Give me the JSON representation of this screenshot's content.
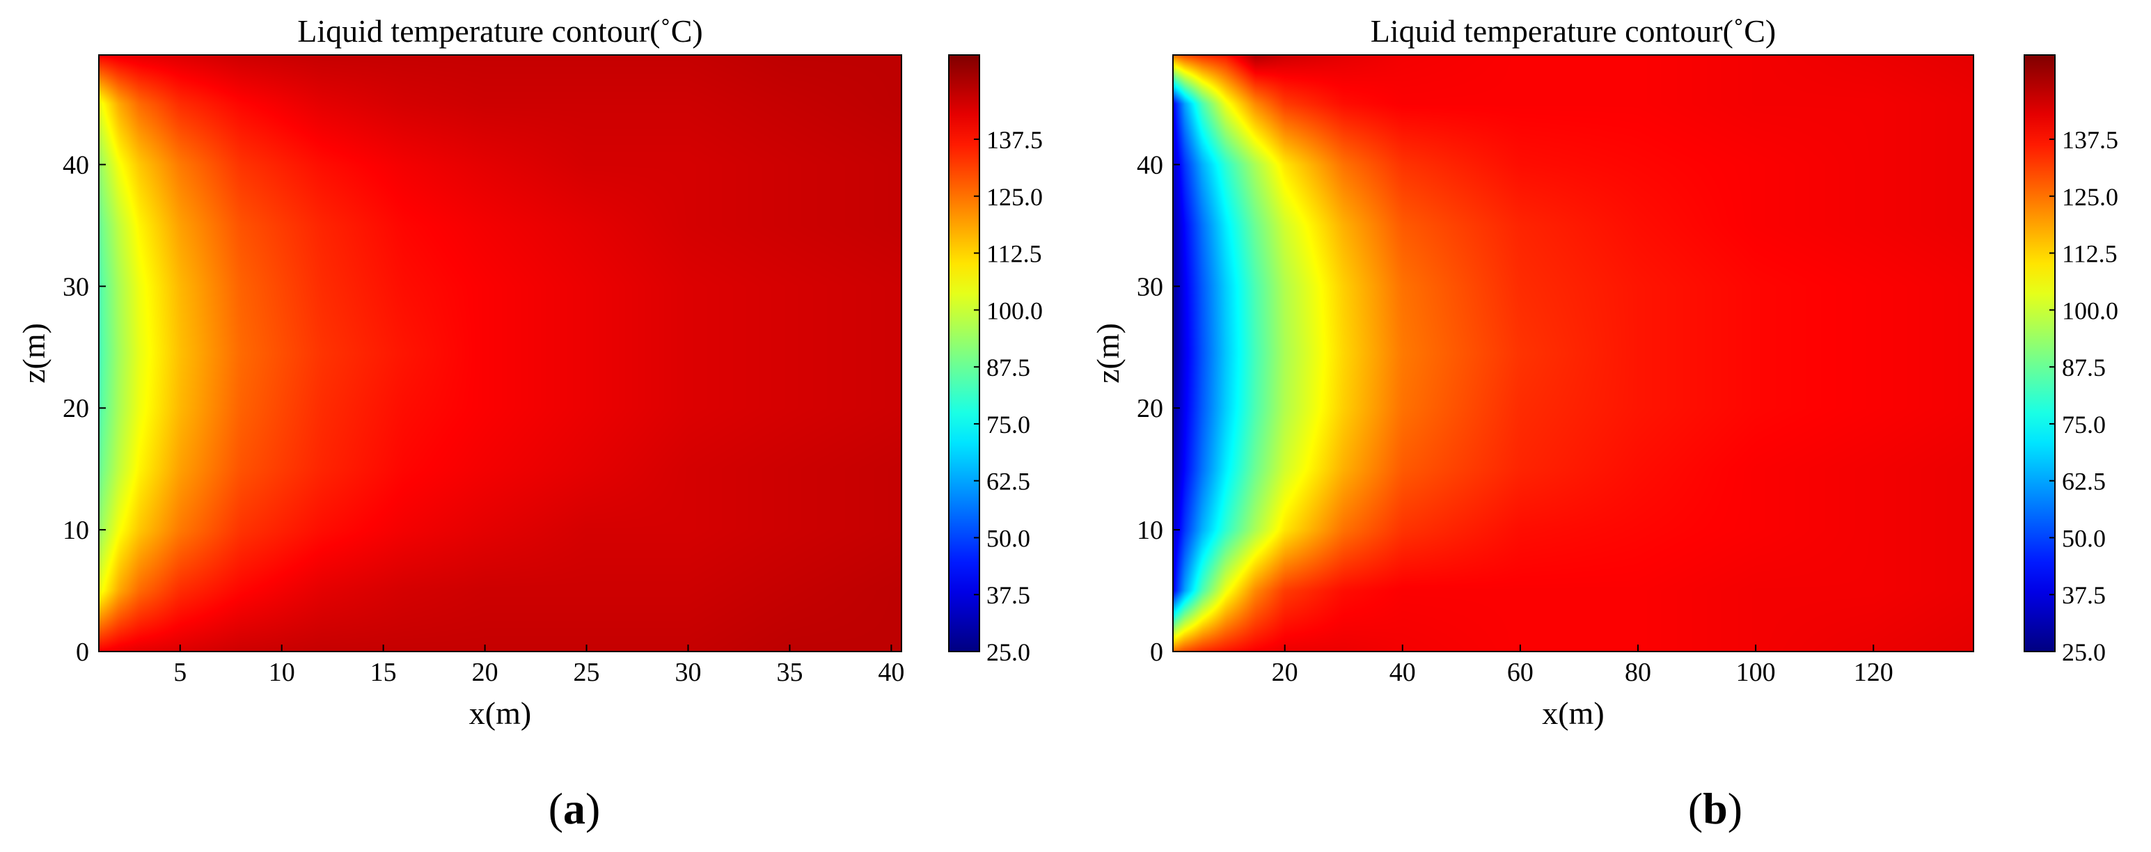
{
  "panel_labels": {
    "a_open": "(",
    "a_letter": "a",
    "a_close": ")",
    "b_open": "(",
    "b_letter": "b",
    "b_close": ")"
  },
  "chart_data": [
    {
      "type": "heatmap",
      "panel": "a",
      "title": "Liquid temperature contour(˚C)",
      "xlabel": "x(m)",
      "ylabel": "z(m)",
      "xlim": [
        1,
        40.5
      ],
      "ylim": [
        0,
        49
      ],
      "xticks": [
        5,
        10,
        15,
        20,
        25,
        30,
        35,
        40
      ],
      "yticks": [
        0,
        10,
        20,
        30,
        40
      ],
      "colorbar": {
        "min": 25.0,
        "max": 156.0,
        "ticks": [
          "25.0",
          "37.5",
          "50.0",
          "62.5",
          "75.0",
          "87.5",
          "100.0",
          "112.5",
          "125.0",
          "137.5"
        ],
        "colormap": "jet"
      },
      "field": {
        "description": "temperature field sampled over (x, z)",
        "x": [
          1,
          2,
          3,
          5,
          8,
          12,
          16,
          20,
          25,
          30,
          35,
          40.5
        ],
        "z": [
          0,
          5,
          10,
          15,
          20,
          24.5,
          30,
          35,
          40,
          45,
          49
        ],
        "values": [
          [
            140,
            142,
            143,
            144,
            146,
            147,
            147,
            147,
            147,
            147,
            148,
            148
          ],
          [
            104,
            118,
            126,
            134,
            139,
            143,
            145,
            146,
            146,
            146,
            147,
            148
          ],
          [
            93,
            106,
            114,
            124,
            133,
            138,
            141,
            143,
            145,
            145,
            146,
            147
          ],
          [
            87,
            99,
            108,
            119,
            129,
            135,
            139,
            141,
            143,
            145,
            146,
            147
          ],
          [
            84,
            96,
            105,
            116,
            127,
            134,
            138,
            140,
            142,
            144,
            145,
            146
          ],
          [
            83,
            95,
            104,
            115,
            126,
            133,
            137,
            140,
            142,
            144,
            145,
            146
          ],
          [
            84,
            96,
            105,
            116,
            127,
            134,
            138,
            140,
            142,
            144,
            145,
            146
          ],
          [
            87,
            99,
            108,
            119,
            129,
            135,
            139,
            141,
            143,
            145,
            146,
            147
          ],
          [
            93,
            106,
            114,
            124,
            133,
            138,
            141,
            143,
            145,
            145,
            146,
            147
          ],
          [
            104,
            118,
            126,
            134,
            139,
            143,
            145,
            146,
            146,
            146,
            147,
            148
          ],
          [
            140,
            142,
            143,
            144,
            146,
            147,
            147,
            147,
            147,
            147,
            148,
            148
          ]
        ]
      }
    },
    {
      "type": "heatmap",
      "panel": "b",
      "title": "Liquid temperature contour(˚C)",
      "xlabel": "x(m)",
      "ylabel": "z(m)",
      "xlim": [
        1,
        137
      ],
      "ylim": [
        0,
        49
      ],
      "xticks": [
        20,
        40,
        60,
        80,
        100,
        120
      ],
      "yticks": [
        0,
        10,
        20,
        30,
        40
      ],
      "colorbar": {
        "min": 25.0,
        "max": 156.0,
        "ticks": [
          "25.0",
          "37.5",
          "50.0",
          "62.5",
          "75.0",
          "87.5",
          "100.0",
          "112.5",
          "125.0",
          "137.5"
        ],
        "colormap": "jet"
      },
      "field": {
        "description": "temperature field sampled over (x, z)",
        "x": [
          1,
          3,
          6,
          10,
          15,
          20,
          30,
          40,
          60,
          80,
          100,
          120,
          137
        ],
        "z": [
          0,
          5,
          10,
          15,
          20,
          24.5,
          30,
          35,
          40,
          45,
          49
        ],
        "values": [
          [
            125,
            130,
            134,
            137,
            140,
            142,
            142,
            141,
            140,
            140,
            141,
            142,
            143
          ],
          [
            40,
            62,
            84,
            105,
            122,
            132,
            138,
            140,
            140,
            140,
            141,
            141,
            142
          ],
          [
            34,
            48,
            64,
            80,
            96,
            110,
            125,
            133,
            138,
            139,
            140,
            141,
            142
          ],
          [
            30,
            42,
            56,
            72,
            88,
            101,
            117,
            128,
            135,
            138,
            140,
            141,
            142
          ],
          [
            28,
            40,
            53,
            68,
            84,
            97,
            113,
            125,
            134,
            137,
            139,
            140,
            141
          ],
          [
            27,
            39,
            52,
            67,
            83,
            96,
            112,
            124,
            133,
            137,
            139,
            140,
            141
          ],
          [
            28,
            40,
            53,
            68,
            84,
            97,
            113,
            125,
            134,
            137,
            139,
            140,
            141
          ],
          [
            30,
            42,
            56,
            72,
            88,
            101,
            117,
            128,
            135,
            138,
            140,
            141,
            142
          ],
          [
            34,
            48,
            64,
            80,
            96,
            110,
            125,
            133,
            138,
            139,
            140,
            141,
            142
          ],
          [
            40,
            62,
            84,
            105,
            122,
            132,
            138,
            140,
            140,
            140,
            141,
            141,
            142
          ],
          [
            125,
            130,
            134,
            137,
            150,
            146,
            143,
            141,
            140,
            140,
            141,
            142,
            143
          ]
        ]
      }
    }
  ]
}
